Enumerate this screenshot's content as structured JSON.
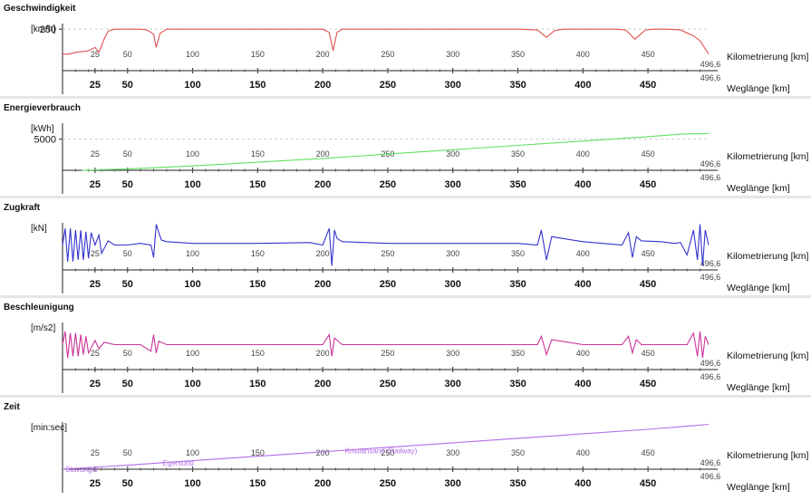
{
  "chart_data": [
    {
      "type": "line",
      "title": "Geschwindigkeit",
      "ylabel": "[km/h]",
      "yticks": [
        250
      ],
      "ylim": [
        0,
        300
      ],
      "color": "#e05050",
      "xlim": [
        0,
        496.6
      ],
      "km_ticks": [
        25,
        50,
        100,
        150,
        200,
        250,
        300,
        350,
        400,
        450
      ],
      "km_end": "496,6",
      "wl_ticks": [
        25,
        50,
        100,
        150,
        200,
        250,
        300,
        350,
        400,
        450
      ],
      "wl_end": "496,6",
      "km_axis_label": "Kilometrierung [km]",
      "wl_axis_label": "Weglänge [km]",
      "series": [
        {
          "x": [
            0,
            5,
            10,
            15,
            20,
            25,
            28,
            30,
            32,
            35,
            40,
            45,
            50,
            60,
            65,
            70,
            72,
            75,
            80,
            90,
            100,
            150,
            190,
            200,
            205,
            208,
            211,
            215,
            220,
            250,
            300,
            350,
            365,
            372,
            378,
            385,
            400,
            425,
            433,
            440,
            448,
            455,
            465,
            475,
            485,
            490,
            496.6
          ],
          "y": [
            100,
            100,
            110,
            115,
            120,
            140,
            110,
            150,
            190,
            238,
            250,
            250,
            250,
            250,
            245,
            220,
            140,
            225,
            250,
            250,
            250,
            250,
            250,
            250,
            230,
            120,
            230,
            250,
            250,
            250,
            250,
            250,
            245,
            200,
            240,
            250,
            250,
            250,
            245,
            190,
            245,
            250,
            250,
            245,
            210,
            180,
            100
          ]
        }
      ]
    },
    {
      "type": "line",
      "title": "Energieverbrauch",
      "ylabel": "[kWh]",
      "yticks": [
        5000
      ],
      "ylim": [
        0,
        8000
      ],
      "color": "#60e060",
      "xlim": [
        0,
        496.6
      ],
      "km_ticks": [
        25,
        50,
        100,
        150,
        200,
        250,
        300,
        350,
        400,
        450
      ],
      "km_end": "496,6",
      "wl_ticks": [
        25,
        50,
        100,
        150,
        200,
        250,
        300,
        350,
        400,
        450
      ],
      "wl_end": "496,6",
      "km_axis_label": "Kilometrierung [km]",
      "wl_axis_label": "Weglänge [km]",
      "series": [
        {
          "x": [
            15,
            50,
            100,
            150,
            200,
            250,
            300,
            350,
            400,
            450,
            475,
            496.6
          ],
          "y": [
            0,
            200,
            700,
            1300,
            1900,
            2600,
            3300,
            4000,
            4700,
            5400,
            5800,
            5900
          ]
        }
      ]
    },
    {
      "type": "line",
      "title": "Zugkraft",
      "ylabel": "[kN]",
      "yticks": [],
      "ylim": [
        -30,
        30
      ],
      "color": "#3333cc",
      "xlim": [
        0,
        496.6
      ],
      "km_ticks": [
        25,
        50,
        100,
        150,
        200,
        250,
        300,
        350,
        400,
        450
      ],
      "km_end": "496,6",
      "wl_ticks": [
        25,
        50,
        100,
        150,
        200,
        250,
        300,
        350,
        400,
        450
      ],
      "wl_end": "496,6",
      "km_axis_label": "Kilometrierung [km]",
      "wl_axis_label": "Weglänge [km]",
      "series": [
        {
          "x": [
            0,
            2,
            4,
            6,
            8,
            10,
            12,
            14,
            16,
            18,
            20,
            22,
            25,
            28,
            30,
            35,
            40,
            50,
            60,
            68,
            70,
            72,
            74,
            76,
            80,
            100,
            150,
            190,
            200,
            205,
            207,
            209,
            211,
            215,
            250,
            300,
            350,
            365,
            368,
            372,
            376,
            400,
            430,
            435,
            438,
            441,
            445,
            460,
            470,
            475,
            480,
            485,
            488,
            490,
            492,
            494,
            496.6
          ],
          "y": [
            0,
            20,
            -20,
            20,
            -20,
            18,
            -18,
            18,
            -18,
            16,
            -16,
            15,
            0,
            12,
            -10,
            5,
            0,
            0,
            2,
            0,
            -15,
            25,
            15,
            6,
            4,
            2,
            2,
            3,
            0,
            20,
            -25,
            18,
            8,
            4,
            2,
            2,
            2,
            0,
            18,
            -18,
            10,
            4,
            0,
            15,
            -15,
            10,
            5,
            4,
            2,
            3,
            -12,
            18,
            -18,
            25,
            -25,
            18,
            0
          ]
        }
      ]
    },
    {
      "type": "line",
      "title": "Beschleunigung",
      "ylabel": "[m/s2]",
      "yticks": [],
      "ylim": [
        -30,
        30
      ],
      "color": "#cc3399",
      "xlim": [
        0,
        496.6
      ],
      "km_ticks": [
        25,
        50,
        100,
        150,
        200,
        250,
        300,
        350,
        400,
        450
      ],
      "km_end": "496,6",
      "wl_ticks": [
        25,
        50,
        100,
        150,
        200,
        250,
        300,
        350,
        400,
        450
      ],
      "wl_end": "496,6",
      "km_axis_label": "Kilometrierung [km]",
      "wl_axis_label": "Weglänge [km]",
      "series": [
        {
          "x": [
            0,
            2,
            4,
            6,
            8,
            10,
            12,
            14,
            16,
            18,
            20,
            25,
            28,
            32,
            40,
            60,
            68,
            70,
            72,
            74,
            80,
            150,
            200,
            205,
            207,
            209,
            215,
            365,
            368,
            372,
            376,
            400,
            430,
            435,
            438,
            441,
            445,
            480,
            485,
            488,
            490,
            492,
            494,
            496.6
          ],
          "y": [
            0,
            16,
            -16,
            14,
            -14,
            14,
            -14,
            12,
            -12,
            10,
            -10,
            5,
            -5,
            3,
            0,
            0,
            -8,
            12,
            -10,
            4,
            0,
            0,
            0,
            12,
            -14,
            8,
            0,
            0,
            10,
            -12,
            6,
            0,
            0,
            10,
            -10,
            6,
            0,
            0,
            14,
            -14,
            16,
            -16,
            10,
            0
          ]
        }
      ]
    },
    {
      "type": "line",
      "title": "Zeit",
      "ylabel": "[min:sec]",
      "yticks": [],
      "ylim": [
        0,
        100
      ],
      "color": "#b36ee8",
      "xlim": [
        0,
        496.6
      ],
      "km_ticks": [
        25,
        50,
        100,
        150,
        200,
        250,
        300,
        350,
        400,
        450
      ],
      "km_end": "496,6",
      "wl_ticks": [
        25,
        50,
        100,
        150,
        200,
        250,
        300,
        350,
        400,
        450
      ],
      "wl_end": "496,6",
      "km_axis_label": "Kilometrierung [km]",
      "wl_axis_label": "Weglänge [km]",
      "stations": [
        {
          "label": "Stavanger",
          "x": 0
        },
        {
          "label": "Egersund",
          "x": 75
        },
        {
          "label": "Kristiansand (Railway)",
          "x": 215
        }
      ],
      "series": [
        {
          "x": [
            0,
            50,
            100,
            150,
            200,
            250,
            300,
            350,
            400,
            450,
            496.6
          ],
          "y": [
            0,
            8,
            17,
            26,
            35,
            44,
            53,
            62,
            71,
            80,
            90
          ]
        }
      ]
    }
  ]
}
